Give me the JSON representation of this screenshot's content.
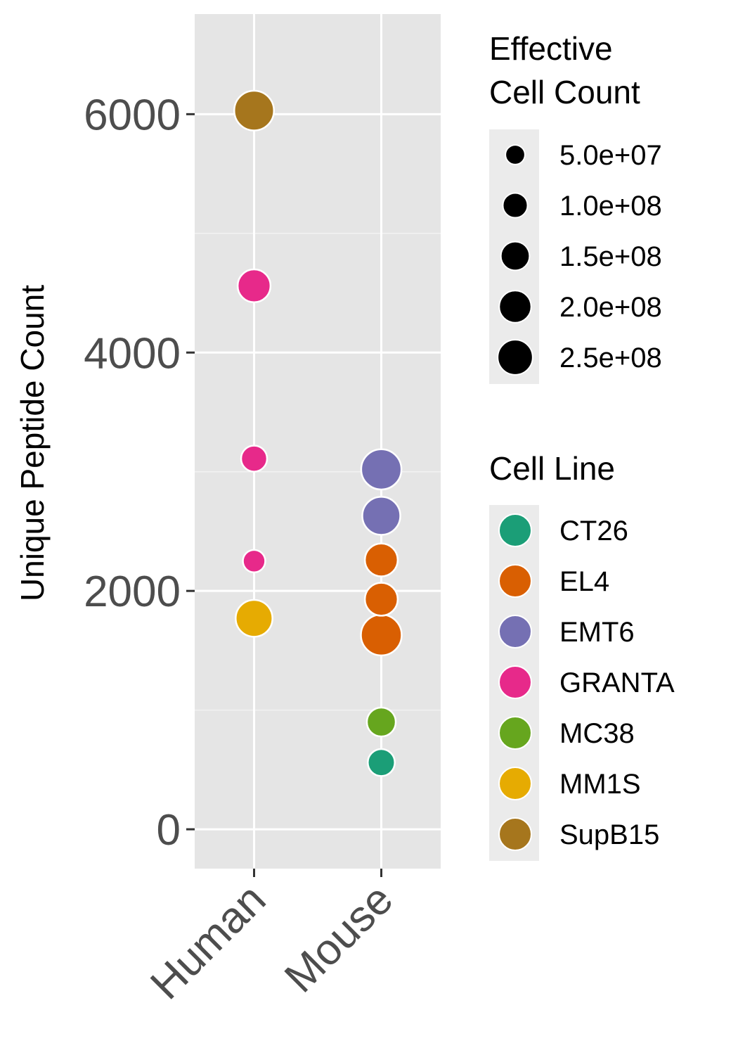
{
  "chart_data": {
    "type": "scatter",
    "title": "",
    "xlabel": "",
    "ylabel": "Unique Peptide Count",
    "x_categories": [
      "Human",
      "Mouse"
    ],
    "ylim": [
      -330,
      6840
    ],
    "y_ticks": [
      0,
      2000,
      4000,
      6000
    ],
    "y_tick_labels": [
      "0",
      "2000",
      "4000",
      "6000"
    ],
    "grid": true,
    "points": [
      {
        "x": "Human",
        "y": 6030,
        "cell_line": "SupB15",
        "cell_count": 260000000.0
      },
      {
        "x": "Human",
        "y": 4560,
        "cell_line": "GRANTA",
        "cell_count": 150000000.0
      },
      {
        "x": "Human",
        "y": 3110,
        "cell_line": "GRANTA",
        "cell_count": 70000000.0
      },
      {
        "x": "Human",
        "y": 2250,
        "cell_line": "GRANTA",
        "cell_count": 40000000.0
      },
      {
        "x": "Human",
        "y": 1770,
        "cell_line": "MM1S",
        "cell_count": 210000000.0
      },
      {
        "x": "Mouse",
        "y": 3020,
        "cell_line": "EMT6",
        "cell_count": 270000000.0
      },
      {
        "x": "Mouse",
        "y": 2630,
        "cell_line": "EMT6",
        "cell_count": 230000000.0
      },
      {
        "x": "Mouse",
        "y": 2260,
        "cell_line": "EL4",
        "cell_count": 150000000.0
      },
      {
        "x": "Mouse",
        "y": 1930,
        "cell_line": "EL4",
        "cell_count": 150000000.0
      },
      {
        "x": "Mouse",
        "y": 1630,
        "cell_line": "EL4",
        "cell_count": 280000000.0
      },
      {
        "x": "Mouse",
        "y": 900,
        "cell_line": "MC38",
        "cell_count": 100000000.0
      },
      {
        "x": "Mouse",
        "y": 560,
        "cell_line": "CT26",
        "cell_count": 80000000.0
      }
    ],
    "legend_placement": "right",
    "size_legend": {
      "title_lines": [
        "Effective",
        "Cell Count"
      ],
      "entries": [
        {
          "label": "5.0e+07",
          "value": 50000000.0
        },
        {
          "label": "1.0e+08",
          "value": 100000000.0
        },
        {
          "label": "1.5e+08",
          "value": 150000000.0
        },
        {
          "label": "2.0e+08",
          "value": 200000000.0
        },
        {
          "label": "2.5e+08",
          "value": 250000000.0
        }
      ]
    },
    "color_legend": {
      "title": "Cell Line",
      "entries": [
        {
          "label": "CT26",
          "color": "#1b9e77"
        },
        {
          "label": "EL4",
          "color": "#d95f02"
        },
        {
          "label": "EMT6",
          "color": "#7570b3"
        },
        {
          "label": "GRANTA",
          "color": "#e7298a"
        },
        {
          "label": "MC38",
          "color": "#66a61e"
        },
        {
          "label": "MM1S",
          "color": "#e6ab02"
        },
        {
          "label": "SupB15",
          "color": "#a6761d"
        }
      ]
    },
    "panel_background": "#e5e5e5"
  }
}
